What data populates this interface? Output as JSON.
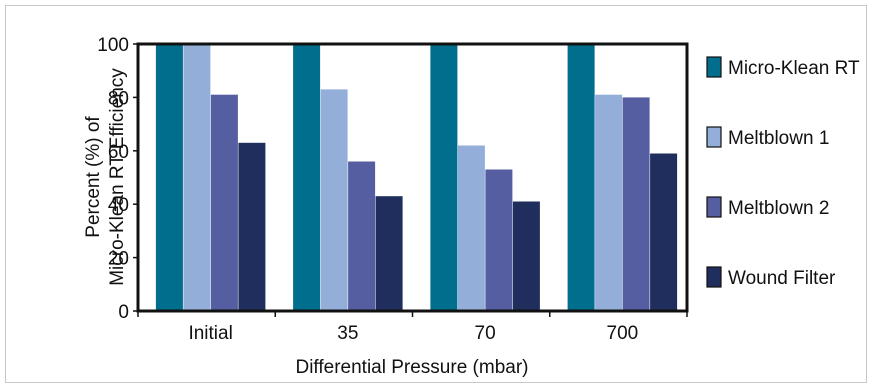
{
  "chart_data": {
    "type": "bar",
    "title": "",
    "xlabel": "Differential Pressure (mbar)",
    "ylabel_lines": [
      "Percent (%) of",
      "Micro-Klean RT Efficiency"
    ],
    "ylim": [
      0,
      100
    ],
    "yticks": [
      "0",
      "20",
      "40",
      "60",
      "80",
      "100"
    ],
    "grid": false,
    "legend_position": "right",
    "categories": [
      "Initial",
      "35",
      "70",
      "700"
    ],
    "series": [
      {
        "name": "Micro-Klean RT",
        "color": "#006e8c",
        "values": [
          100,
          100,
          100,
          100
        ]
      },
      {
        "name": "Meltblown 1",
        "color": "#93aed8",
        "values": [
          100,
          83,
          62,
          81
        ]
      },
      {
        "name": "Meltblown 2",
        "color": "#545ea0",
        "values": [
          81,
          56,
          53,
          80
        ]
      },
      {
        "name": "Wound Filter",
        "color": "#1f2e5c",
        "values": [
          63,
          43,
          41,
          59
        ]
      }
    ]
  }
}
